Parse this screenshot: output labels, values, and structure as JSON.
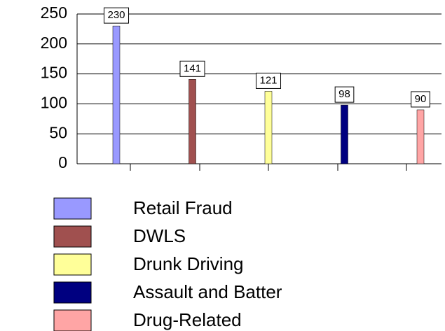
{
  "chart_data": {
    "type": "bar",
    "series": [
      {
        "name": "Retail Fraud",
        "color": "#9999ff",
        "values": [
          230
        ]
      },
      {
        "name": "DWLS",
        "color": "#a0504f",
        "values": [
          141
        ]
      },
      {
        "name": "Drunk Driving",
        "color": "#ffff99",
        "values": [
          121
        ]
      },
      {
        "name": "Assault and Batter",
        "color": "#000080",
        "values": [
          98
        ]
      },
      {
        "name": "Drug-Related",
        "color": "#ffa5a5",
        "values": [
          90
        ]
      }
    ],
    "ylim": [
      0,
      250
    ],
    "yticks": [
      0,
      50,
      100,
      150,
      200,
      250
    ],
    "grid": true,
    "legend": "bottom"
  }
}
